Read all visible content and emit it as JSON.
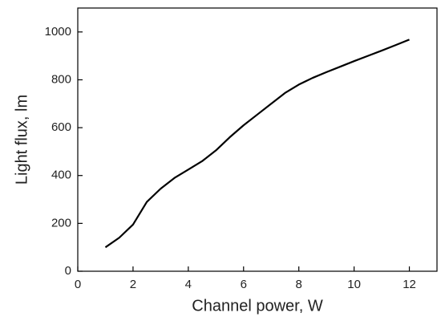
{
  "chart_data": {
    "type": "line",
    "x_label": "Channel power, W",
    "y_label": "Light flux, lm",
    "x": [
      1,
      1.5,
      2,
      2.5,
      3,
      3.5,
      4,
      4.5,
      5,
      5.5,
      6,
      6.5,
      7,
      7.5,
      8,
      8.5,
      9,
      9.5,
      10,
      10.5,
      11,
      11.5,
      12
    ],
    "values": [
      100,
      140,
      195,
      290,
      345,
      390,
      425,
      460,
      505,
      560,
      610,
      655,
      700,
      745,
      780,
      808,
      832,
      855,
      878,
      900,
      922,
      945,
      968
    ],
    "color": "#000000",
    "xlim": [
      0,
      13
    ],
    "xticks": [
      0,
      2,
      4,
      6,
      8,
      10,
      12
    ],
    "ylim": [
      0,
      1100
    ],
    "yticks": [
      0,
      200,
      400,
      600,
      800,
      1000
    ]
  }
}
